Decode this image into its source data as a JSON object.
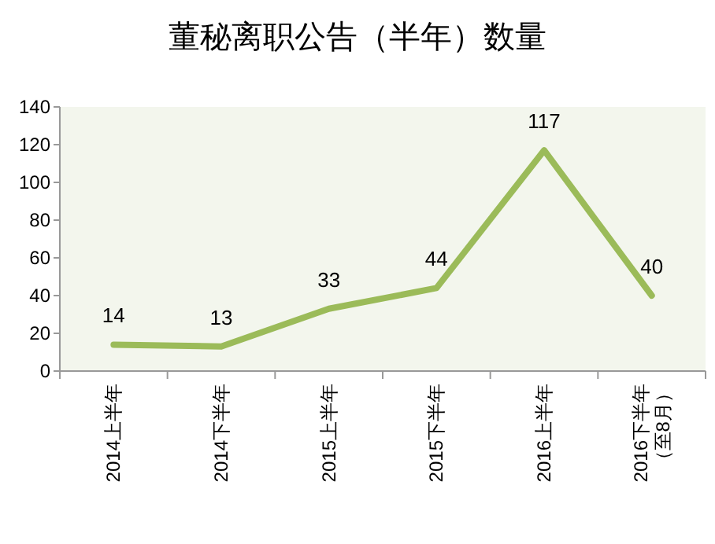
{
  "chart_data": {
    "type": "line",
    "title": "董秘离职公告（半年）数量",
    "categories": [
      "2014上半年",
      "2014下半年",
      "2015上半年",
      "2015下半年",
      "2016上半年",
      "2016下半年（至8月）"
    ],
    "series": [
      {
        "color": "#9bbb59",
        "values": [
          14,
          13,
          33,
          44,
          117,
          40
        ]
      }
    ],
    "ylim": [
      0,
      140
    ],
    "yticks": [
      0,
      20,
      40,
      60,
      80,
      100,
      120,
      140
    ],
    "data_labels": true,
    "grid": false,
    "marker": "none",
    "line_style": "solid"
  }
}
